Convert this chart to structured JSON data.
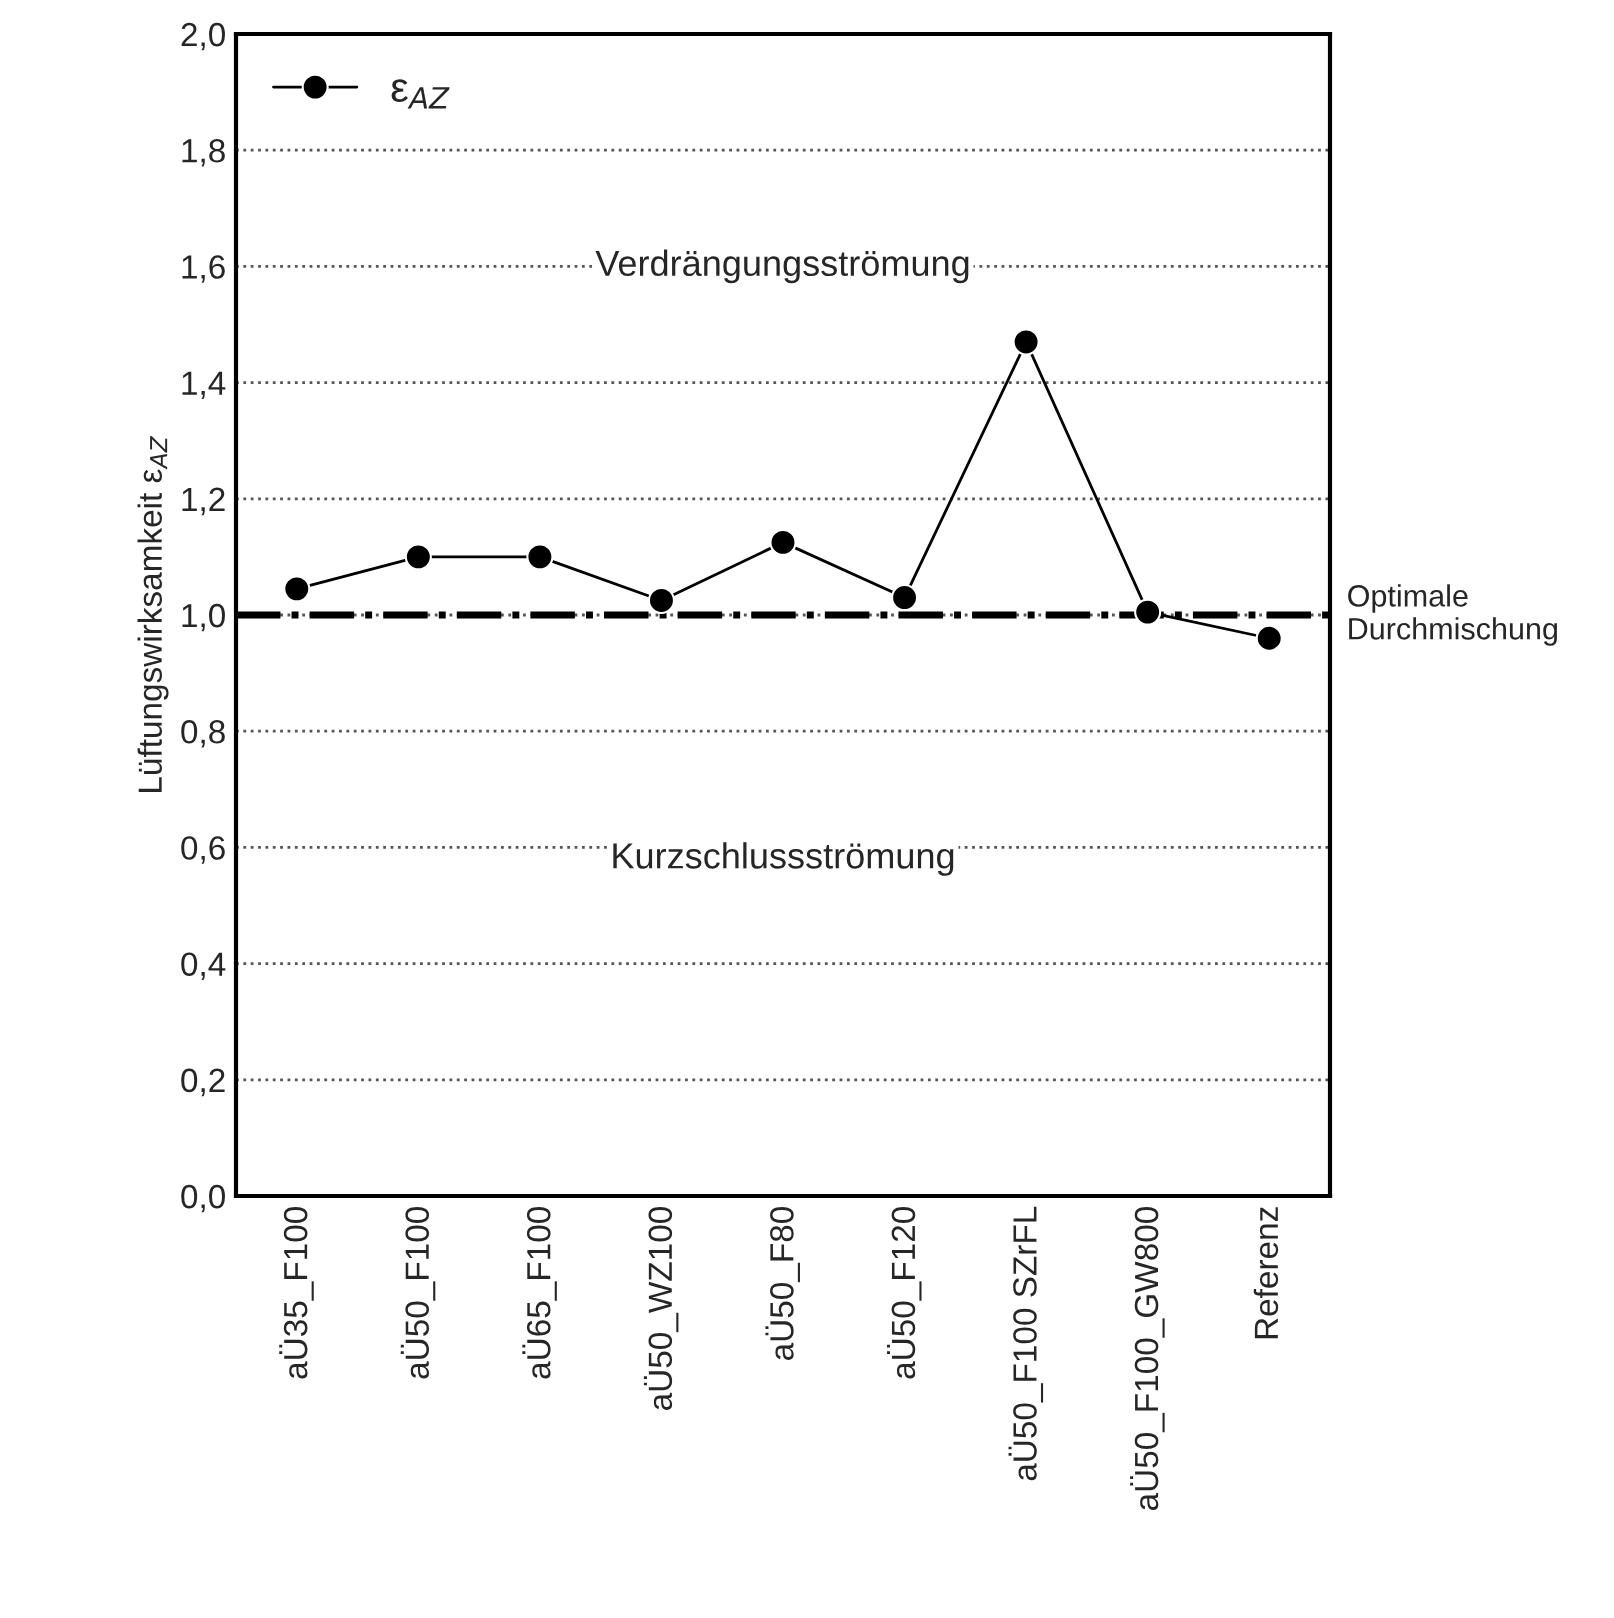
{
  "chart_data": {
    "type": "line",
    "ylabel": "Lüftungswirksamkeit ε$_{AZ}$",
    "categories": [
      "aÜ35_F100",
      "aÜ50_F100",
      "aÜ65_F100",
      "aÜ50_WZ100",
      "aÜ50_F80",
      "aÜ50_F120",
      "aÜ50_F100 SZrFL",
      "aÜ50_F100_GW800",
      "Referenz"
    ],
    "series": [
      {
        "name": "ε$_{AZ}$",
        "color": "#000000",
        "values": [
          1.045,
          1.1,
          1.1,
          1.025,
          1.125,
          1.03,
          1.47,
          1.005,
          0.96
        ]
      }
    ],
    "ylim": [
      0,
      2
    ],
    "yticks": [
      {
        "value": 0,
        "label": "0,0"
      },
      {
        "value": 0.2,
        "label": "0,2"
      },
      {
        "value": 0.4,
        "label": "0,4"
      },
      {
        "value": 0.6,
        "label": "0,6"
      },
      {
        "value": 0.8,
        "label": "0,8"
      },
      {
        "value": 1.0,
        "label": "1,0"
      },
      {
        "value": 1.2,
        "label": "1,2"
      },
      {
        "value": 1.4,
        "label": "1,4"
      },
      {
        "value": 1.6,
        "label": "1,6"
      },
      {
        "value": 1.8,
        "label": "1,8"
      },
      {
        "value": 2.0,
        "label": "2,0"
      }
    ],
    "ref_lines": [
      {
        "axis": "y",
        "value": 1.0,
        "label": "Optimale\nDurchmischung",
        "color": "#000000",
        "line_style": "dashdot"
      }
    ],
    "annotations": [
      "Verdrängungsströmung",
      "Kurzschlussströmung"
    ],
    "grid": "y",
    "legend": "top left",
    "marker": "circle",
    "line_style": "solid"
  }
}
